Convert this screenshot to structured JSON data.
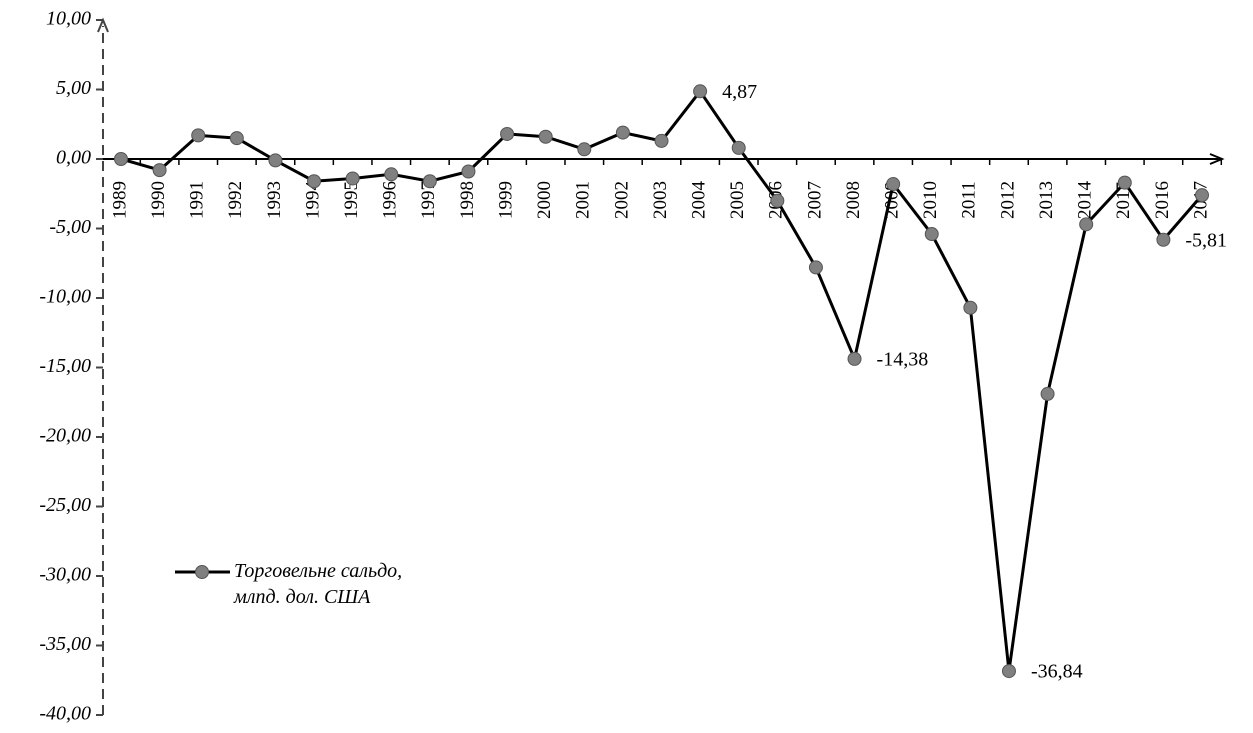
{
  "chart_data": {
    "type": "line",
    "categories": [
      "1989",
      "1990",
      "1991",
      "1992",
      "1993",
      "1994",
      "1995",
      "1996",
      "1997",
      "1998",
      "1999",
      "2000",
      "2001",
      "2002",
      "2003",
      "2004",
      "2005",
      "2006",
      "2007",
      "2008",
      "2009",
      "2010",
      "2011",
      "2012",
      "2013",
      "2014",
      "2015",
      "2016",
      "2017"
    ],
    "series": [
      {
        "name": "Торговельне сальдо, млпд. дол. США",
        "color": "#000000",
        "marker_color": "#808080",
        "values": [
          0,
          -0.8,
          1.7,
          1.5,
          -0.1,
          -1.6,
          -1.4,
          -1.1,
          -1.6,
          -0.9,
          1.8,
          1.6,
          0.7,
          1.9,
          1.3,
          4.87,
          0.8,
          -3.0,
          -7.8,
          -14.38,
          -1.8,
          -5.4,
          -10.7,
          -36.84,
          -16.9,
          -4.7,
          -1.7,
          -5.81,
          -2.6
        ],
        "value_labels": [
          null,
          null,
          null,
          null,
          null,
          null,
          null,
          null,
          null,
          null,
          null,
          null,
          null,
          null,
          null,
          "4,87",
          null,
          null,
          null,
          "-14,38",
          null,
          null,
          null,
          "-36,84",
          null,
          null,
          null,
          "-5,81",
          null
        ]
      }
    ],
    "ylim": [
      -40,
      10
    ],
    "yticks": [
      {
        "value": -40,
        "label": "-40,00"
      },
      {
        "value": -35,
        "label": "-35,00"
      },
      {
        "value": -30,
        "label": "-30,00"
      },
      {
        "value": -25,
        "label": "-25,00"
      },
      {
        "value": -20,
        "label": "-20,00"
      },
      {
        "value": -15,
        "label": "-15,00"
      },
      {
        "value": -10,
        "label": "-10,00"
      },
      {
        "value": -5,
        "label": "-5,00"
      },
      {
        "value": 0,
        "label": "0,00"
      },
      {
        "value": 5,
        "label": "5,00"
      },
      {
        "value": 10,
        "label": "10,00"
      }
    ],
    "grid": false,
    "legend": "lower left"
  }
}
